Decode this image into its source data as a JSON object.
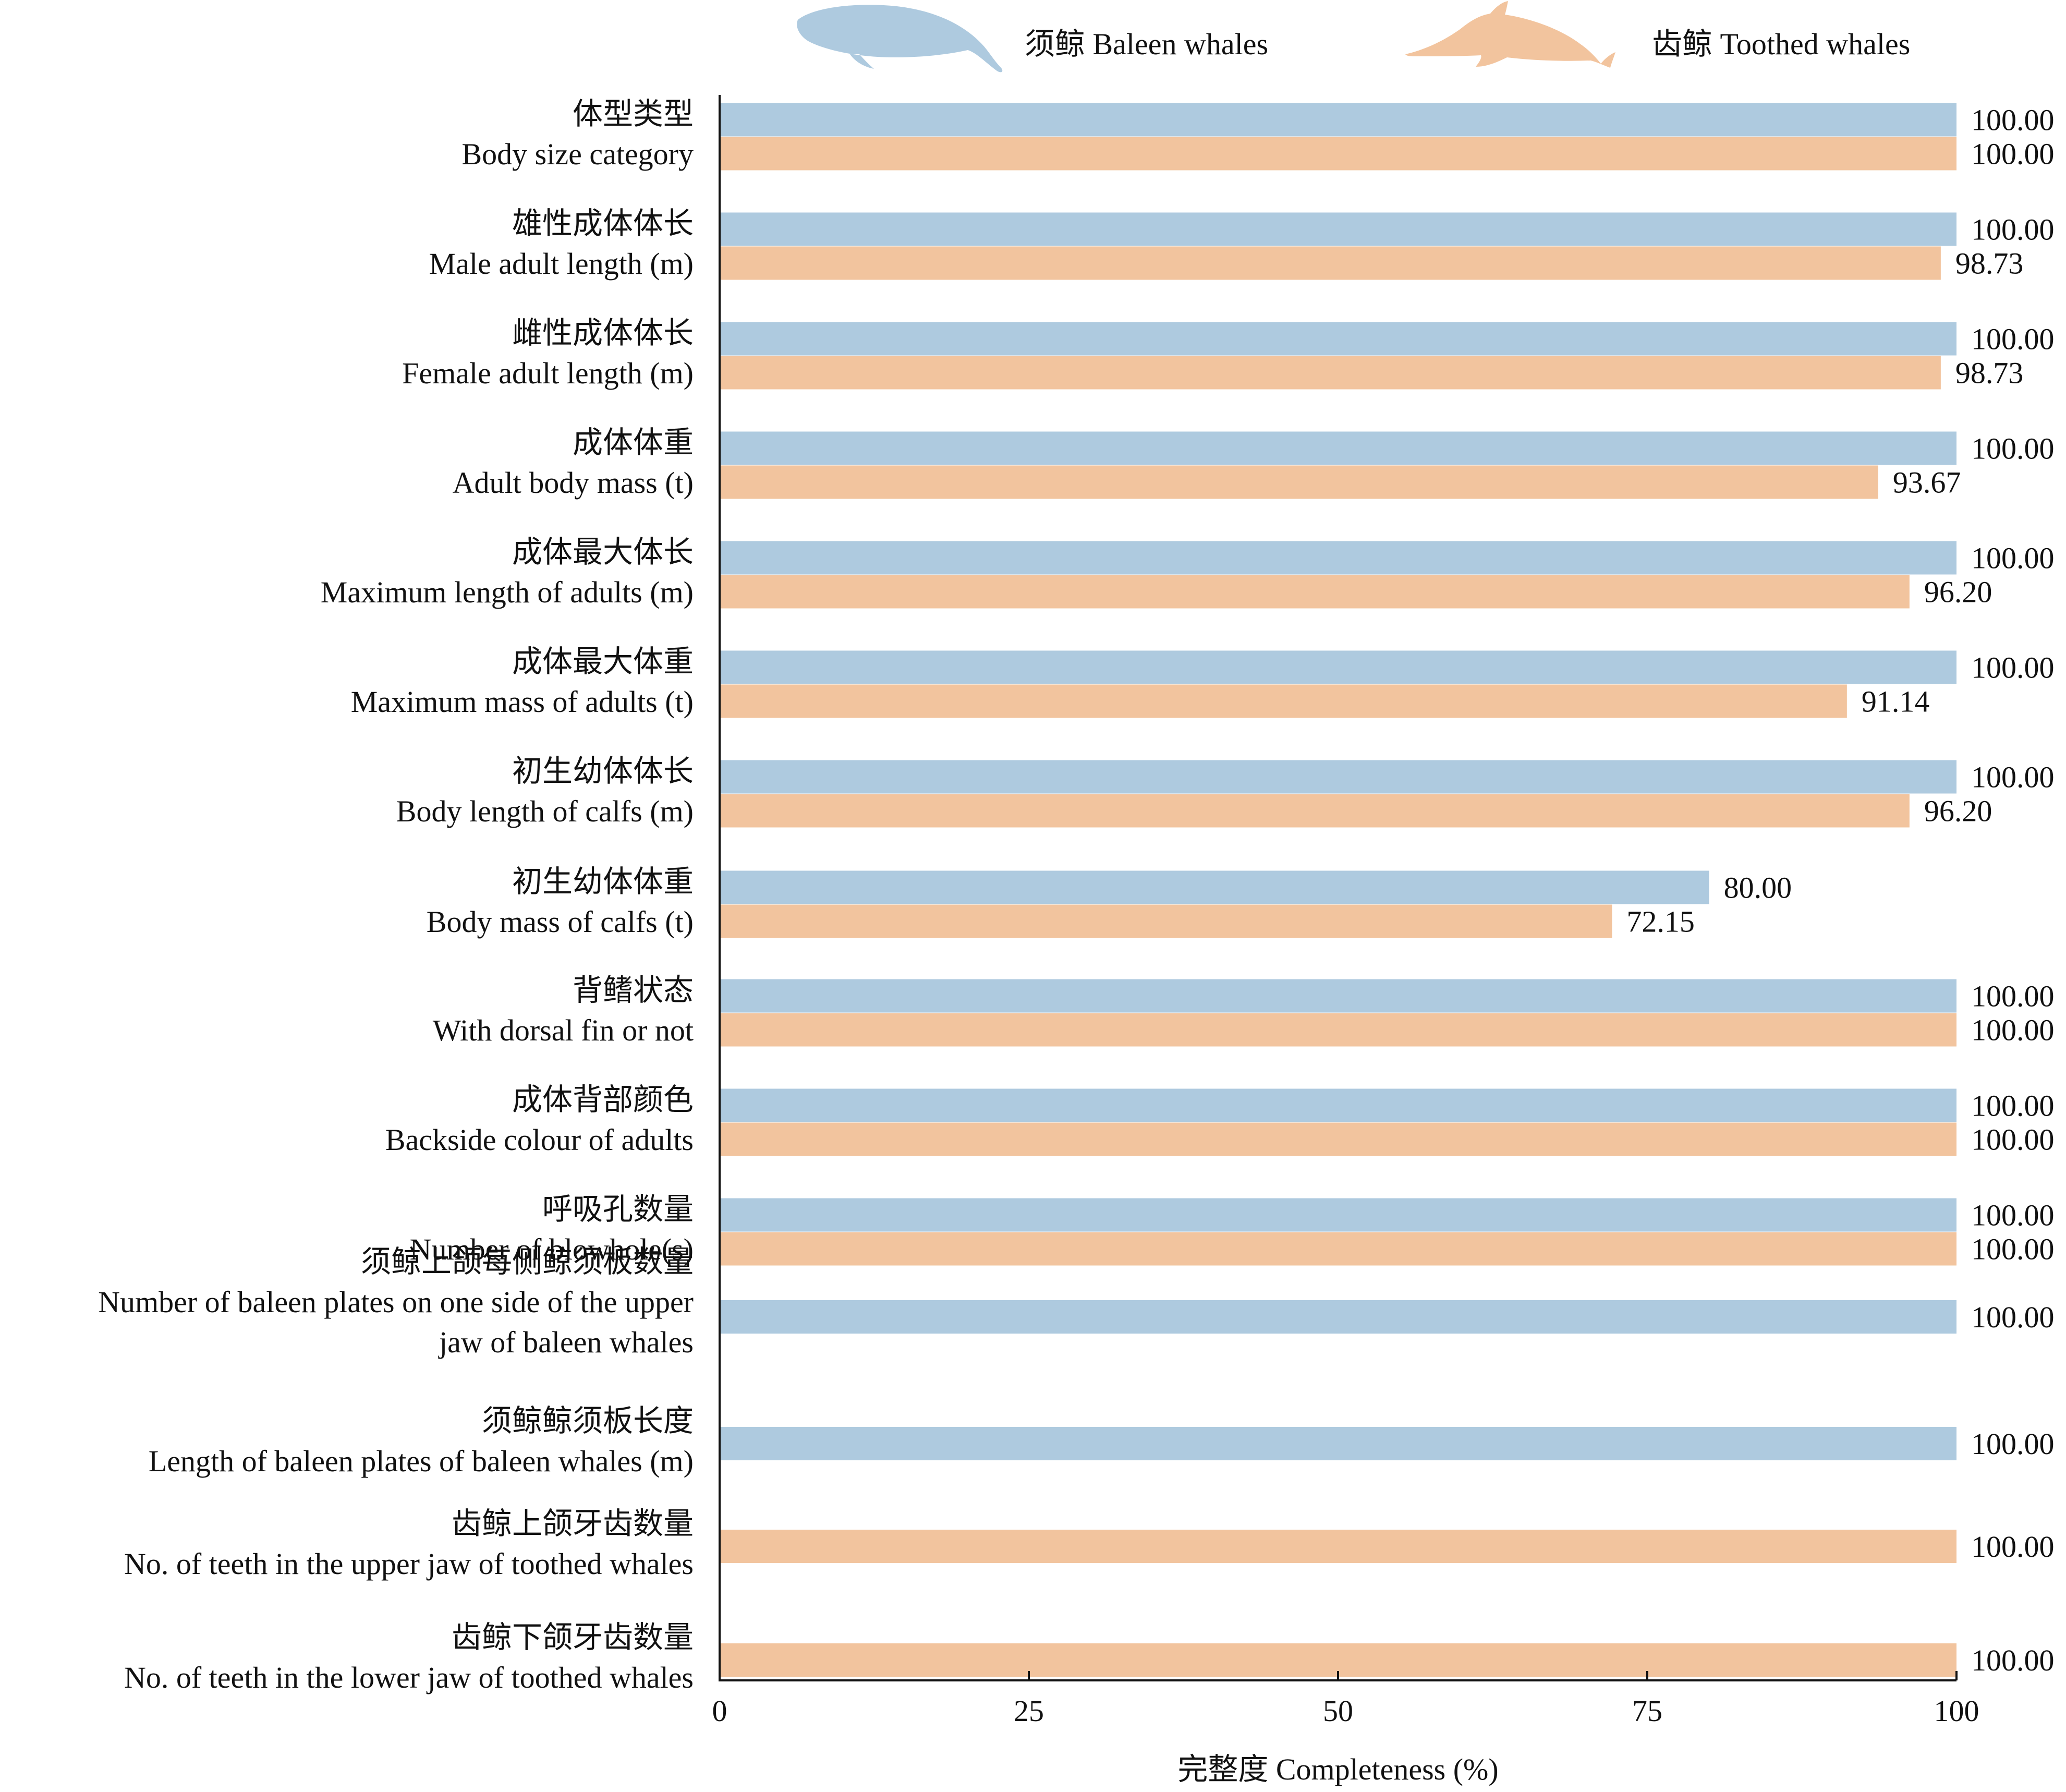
{
  "chart_data": {
    "type": "bar",
    "orientation": "horizontal",
    "xlabel": "完整度 Completeness (%)",
    "xlim": [
      0,
      100
    ],
    "xticks": [
      0,
      25,
      50,
      75,
      100
    ],
    "grid": false,
    "legend_position": "top",
    "series": [
      {
        "name": "须鲸 Baleen whales",
        "color": "#aecadf",
        "icon": "baleen-whale-silhouette-icon"
      },
      {
        "name": "齿鲸 Toothed whales",
        "color": "#f2c49e",
        "icon": "dolphin-silhouette-icon"
      }
    ],
    "categories": [
      {
        "zh": "体型类型",
        "en": [
          "Body size category"
        ],
        "baleen": 100.0,
        "toothed": 100.0
      },
      {
        "zh": "雄性成体体长",
        "en": [
          "Male adult length (m)"
        ],
        "baleen": 100.0,
        "toothed": 98.73
      },
      {
        "zh": "雌性成体体长",
        "en": [
          "Female adult length (m)"
        ],
        "baleen": 100.0,
        "toothed": 98.73
      },
      {
        "zh": "成体体重",
        "en": [
          "Adult body mass (t)"
        ],
        "baleen": 100.0,
        "toothed": 93.67
      },
      {
        "zh": "成体最大体长",
        "en": [
          "Maximum length of adults (m)"
        ],
        "baleen": 100.0,
        "toothed": 96.2
      },
      {
        "zh": "成体最大体重",
        "en": [
          "Maximum mass of adults (t)"
        ],
        "baleen": 100.0,
        "toothed": 91.14
      },
      {
        "zh": "初生幼体体长",
        "en": [
          "Body length of calfs (m)"
        ],
        "baleen": 100.0,
        "toothed": 96.2
      },
      {
        "zh": "初生幼体体重",
        "en": [
          "Body mass of calfs (t)"
        ],
        "baleen": 80.0,
        "toothed": 72.15
      },
      {
        "zh": "背鳍状态",
        "en": [
          "With dorsal fin or not"
        ],
        "baleen": 100.0,
        "toothed": 100.0
      },
      {
        "zh": "成体背部颜色",
        "en": [
          "Backside colour of adults"
        ],
        "baleen": 100.0,
        "toothed": 100.0
      },
      {
        "zh": "呼吸孔数量",
        "en": [
          "Number of blowhole(s)"
        ],
        "baleen": 100.0,
        "toothed": 100.0
      },
      {
        "zh": "须鲸上颌每侧鲸须板数量",
        "en": [
          "Number of baleen plates on one side of the upper",
          "jaw of baleen whales"
        ],
        "baleen": 100.0,
        "toothed": null
      },
      {
        "zh": "须鲸鲸须板长度",
        "en": [
          "Length of baleen plates of baleen whales (m)"
        ],
        "baleen": 100.0,
        "toothed": null
      },
      {
        "zh": "齿鲸上颌牙齿数量",
        "en": [
          "No. of teeth in the upper jaw of toothed whales"
        ],
        "baleen": null,
        "toothed": 100.0
      },
      {
        "zh": "齿鲸下颌牙齿数量",
        "en": [
          "No. of teeth in the lower jaw of toothed whales"
        ],
        "baleen": null,
        "toothed": 100.0
      }
    ]
  }
}
